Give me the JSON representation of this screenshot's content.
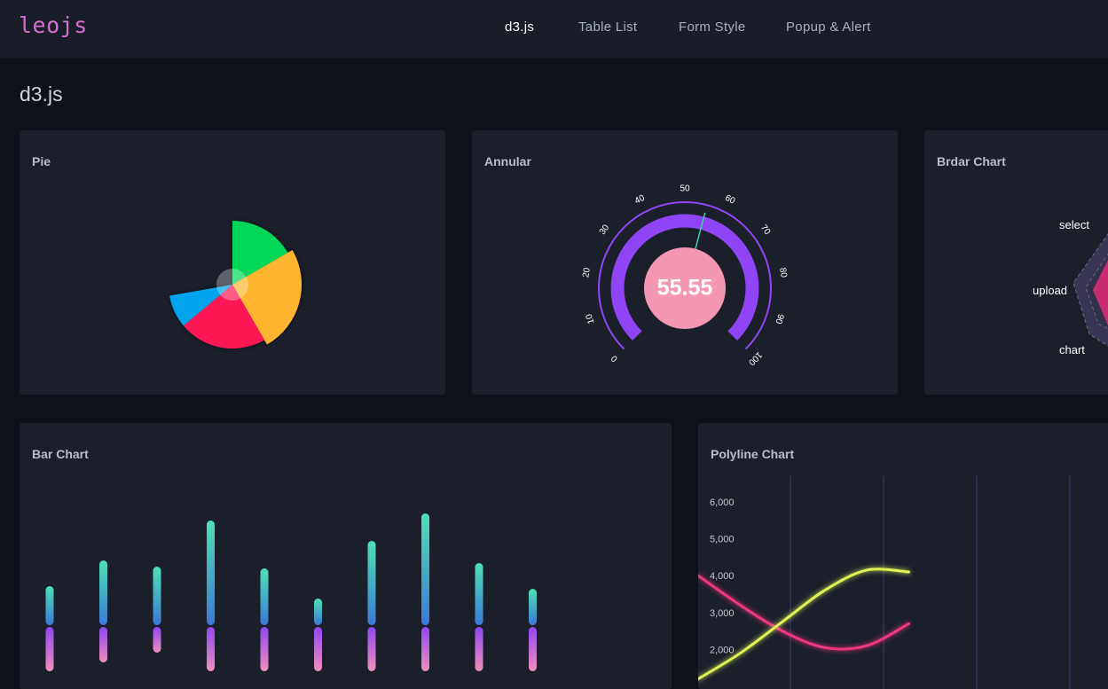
{
  "header": {
    "logo": "leojs",
    "nav": [
      {
        "label": "d3.js",
        "active": true
      },
      {
        "label": "Table List",
        "active": false
      },
      {
        "label": "Form Style",
        "active": false
      },
      {
        "label": "Popup & Alert",
        "active": false
      }
    ]
  },
  "page": {
    "title": "d3.js"
  },
  "cards": {
    "pie": {
      "title": "Pie"
    },
    "annular": {
      "title": "Annular"
    },
    "radar": {
      "title": "Brdar Chart"
    },
    "bar": {
      "title": "Bar Chart"
    },
    "polyline": {
      "title": "Polyline Chart"
    }
  },
  "colors": {
    "background": "#0d1119",
    "panel": "#1a1f2a",
    "gauge_arc": "#8f45f5",
    "gauge_center": "#f497b3",
    "line_pink": "#f0387e",
    "line_yellow": "#dff257"
  },
  "chart_data": [
    {
      "type": "pie",
      "title": "Pie",
      "series": [
        {
          "name": "",
          "value": 60,
          "color": "#04d757"
        },
        {
          "name": "",
          "value": 90,
          "color": "#ffb62d"
        },
        {
          "name": "",
          "value": 80,
          "color": "#ff1855"
        },
        {
          "name": "",
          "value": 30,
          "color": "#05a4ec"
        }
      ],
      "radius_scale": [
        0.72,
        0.78,
        0.72,
        0.72
      ],
      "max_value": 360
    },
    {
      "type": "gauge",
      "title": "Annular",
      "value": 55.55,
      "value_label": "55.55",
      "min": 0,
      "max": 100,
      "ticks": [
        "0",
        "10",
        "20",
        "30",
        "40",
        "50",
        "60",
        "70",
        "80",
        "90",
        "100"
      ]
    },
    {
      "type": "radar",
      "title": "Brdar Chart",
      "axes": [
        "select",
        "upload",
        "chart"
      ]
    },
    {
      "type": "bar",
      "title": "Bar Chart",
      "top_values": [
        44,
        73,
        66,
        118,
        64,
        30,
        95,
        126,
        70,
        41
      ],
      "bottom_values": [
        50,
        40,
        29,
        50,
        50,
        50,
        50,
        50,
        50,
        50
      ]
    },
    {
      "type": "line",
      "title": "Polyline Chart",
      "y_ticks": [
        "6,000",
        "5,000",
        "4,000",
        "3,000",
        "2,000"
      ],
      "ylim": [
        1000,
        6500
      ],
      "x": [
        0,
        1,
        2,
        3,
        4,
        5
      ],
      "series": [
        {
          "name": "",
          "color": "#f0387e",
          "values": [
            4000,
            3200,
            2500,
            2050,
            2100,
            2700
          ]
        },
        {
          "name": "",
          "color": "#dff257",
          "values": [
            1200,
            1900,
            2750,
            3600,
            4150,
            4100
          ]
        }
      ]
    }
  ]
}
